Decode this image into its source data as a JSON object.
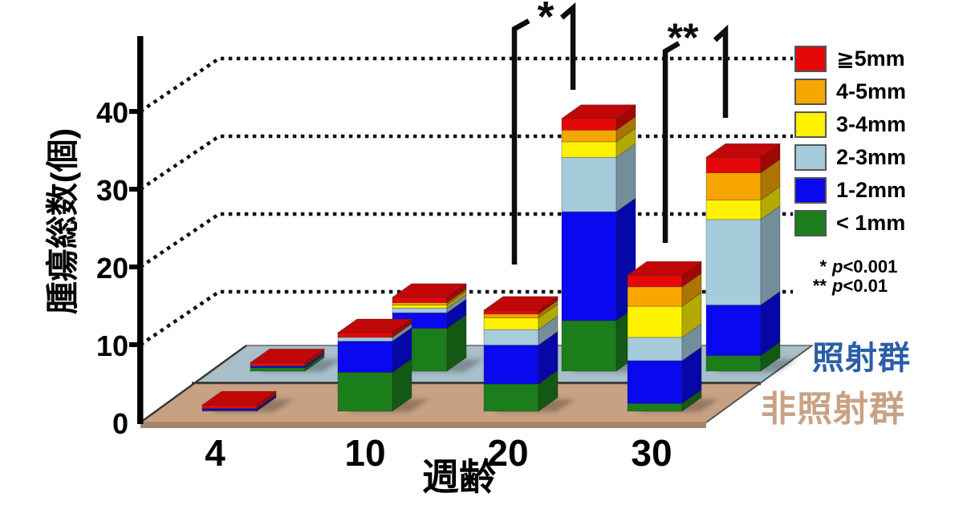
{
  "figure": {
    "background": "#ffffff",
    "description": "3D stacked bar chart of total tumor counts by tumor size class, irradiated vs non-irradiated groups, by age in weeks"
  },
  "chart_data": {
    "type": "bar",
    "variant": "3d-stacked, two depth rows (one per group)",
    "title": "",
    "xlabel": "週齢",
    "ylabel": "腫瘍総数(個)",
    "ylim": [
      0,
      45
    ],
    "y_ticks": [
      0,
      10,
      20,
      30,
      40
    ],
    "categories": [
      "4",
      "10",
      "20",
      "30"
    ],
    "grid": "dotted horizontal gridlines on back plane at 10,20,30,40",
    "legend_position": "top-right",
    "size_classes": [
      {
        "label": "≧5mm",
        "color": "#e60808"
      },
      {
        "label": "4-5mm",
        "color": "#f7a600"
      },
      {
        "label": "3-4mm",
        "color": "#fff200"
      },
      {
        "label": "2-3mm",
        "color": "#a6cbdb"
      },
      {
        "label": "1-2mm",
        "color": "#0a08ee"
      },
      {
        "label": "< 1mm",
        "color": "#1b7e1b"
      }
    ],
    "values_order": "same order as size_classes (legend top to bottom)",
    "series": [
      {
        "name": "照射群",
        "row": "back",
        "label_color": "#2b5ea7",
        "floor_color": "#a8bec8",
        "values": [
          [
            0.4,
            0,
            0,
            0.05,
            0.2,
            0.45
          ],
          [
            0.7,
            0.3,
            0.4,
            0.6,
            2.0,
            5.5
          ],
          [
            1.5,
            1.5,
            2.0,
            7.0,
            14.0,
            6.5
          ],
          [
            2.0,
            3.5,
            2.5,
            11.0,
            6.5,
            2.0
          ]
        ],
        "totals_approx": [
          1.1,
          9.5,
          32.5,
          27.5
        ]
      },
      {
        "name": "非照射群",
        "row": "front",
        "label_color": "#c8a285",
        "floor_color": "#c8a183",
        "values": [
          [
            0.45,
            0,
            0,
            0,
            0.25,
            0.1
          ],
          [
            0.6,
            0,
            0,
            0.5,
            4.0,
            5.0
          ],
          [
            0.5,
            0.5,
            1.5,
            2.0,
            5.0,
            3.5
          ],
          [
            1.5,
            2.5,
            4.0,
            3.0,
            5.5,
            1.0
          ]
        ],
        "totals_approx": [
          0.8,
          10.1,
          13.0,
          17.5
        ]
      }
    ],
    "annotations": {
      "significance": [
        {
          "label": "*",
          "week": "20"
        },
        {
          "label": "**",
          "week": "30"
        }
      ],
      "pnotes": [
        {
          "stars": "*",
          "p": "p",
          "value": "<0.001"
        },
        {
          "stars": "**",
          "p": "p",
          "value": "<0.01"
        }
      ]
    }
  }
}
